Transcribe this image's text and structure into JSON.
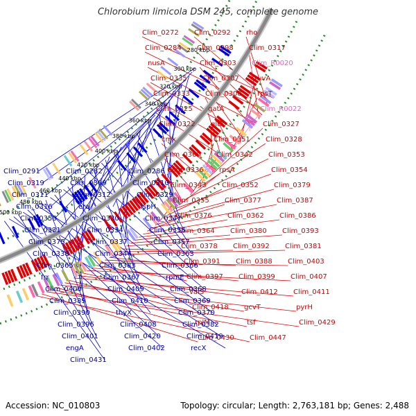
{
  "title": "Chlorobium limicola DSM 245, complete genome",
  "footer": {
    "accession": "Accession: NC_010803",
    "topology": "Topology: circular; Length: 2,763,181 bp; Genes: 2,488"
  },
  "colors": {
    "forward": "#e00000",
    "reverse": "#0000dd",
    "rna": "#ee88cc",
    "gc_dots": "#228b22",
    "backbone": "#888888"
  },
  "ticks": [
    "280 kbp",
    "300 kbp",
    "320 kbp",
    "340 kbp",
    "360 kbp",
    "380 kbp",
    "400 kbp",
    "420 kbp",
    "440 kbp",
    "460 kbp",
    "480 kbp",
    "500 kbp"
  ],
  "right_labels": [
    "Clim_0272",
    "Clim_0292",
    "rho",
    "Clim_0284",
    "Clim_0298",
    "Clim_0317",
    "nusA",
    "Clim_0303",
    "Clim_R0020",
    "Clim_0335",
    "Clim_0307",
    "ruvA",
    "Clim_0333",
    "Clim_0308",
    "rpsT",
    "Clim_0325",
    "gatA",
    "Clim_R0022",
    "Clim_0322",
    "gltX",
    "Clim_0327",
    "cmk",
    "Clim_0351",
    "Clim_0328",
    "Clim_0360",
    "Clim_0342",
    "Clim_0353",
    "Clim_0336",
    "rpsA",
    "Clim_0354",
    "Clim_0343",
    "Clim_0352",
    "Clim_0379",
    "Clim_0355",
    "Clim_0377",
    "Clim_0387",
    "Clim_0376",
    "Clim_0362",
    "Clim_0386",
    "Clim_0364",
    "Clim_0380",
    "Clim_0393",
    "Clim_0378",
    "Clim_0392",
    "Clim_0381",
    "Clim_0391",
    "Clim_0388",
    "Clim_0403",
    "Clim_0397",
    "Clim_0399",
    "Clim_0407",
    "valS",
    "Clim_0412",
    "Clim_0411",
    "Clim_0418",
    "gcvT",
    "pyrH",
    "rplM",
    "tsf",
    "Clim_0429",
    "Clim_0430",
    "Clim_0447"
  ],
  "left_labels": [
    "Clim_0291",
    "Clim_0282",
    "Clim_0286",
    "Clim_0319",
    "Clim_0309",
    "Clim_0310",
    "Clim_0311",
    "Clim_0312",
    "Clim_0329",
    "Clim_0316",
    "era",
    "ispH",
    "Clim_0358",
    "Clim_0330",
    "Clim_0347",
    "Clim_0331",
    "Clim_0334",
    "Clim_0356",
    "Clim_0375",
    "Clim_0337",
    "Clim_0357",
    "Clim_0338",
    "Clim_0344",
    "Clim_0363",
    "Clim_0365",
    "Clim_0383",
    "Clim_0366",
    "frr",
    "Clim_0367",
    "rpmE",
    "Clim_0400",
    "Clim_0409",
    "Clim_0368",
    "Clim_0389",
    "Clim_0410",
    "Clim_0369",
    "Clim_0390",
    "thyX",
    "Clim_0370",
    "Clim_0396",
    "Clim_0408",
    "Clim_0382",
    "Clim_0401",
    "Clim_0420",
    "Clim_0419",
    "engA",
    "Clim_0402",
    "recX",
    "Clim_0431"
  ]
}
